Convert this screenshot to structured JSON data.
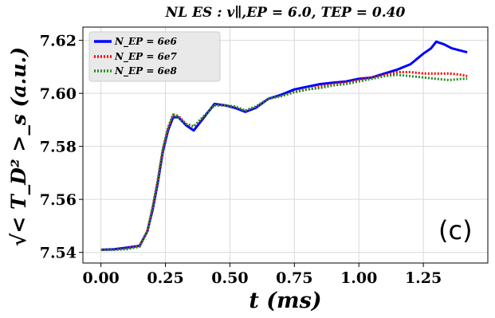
{
  "chart_data": {
    "type": "line",
    "title": "NL ES :  v∥,EP = 6.0,  TEP = 0.40",
    "xlabel": "t (ms)",
    "ylabel": "√< T_D² >_s (a.u.)",
    "panel_label": "(c)",
    "xlim": [
      -0.07,
      1.5
    ],
    "ylim": [
      7.536,
      7.625
    ],
    "xticks": [
      0.0,
      0.25,
      0.5,
      0.75,
      1.0,
      1.25
    ],
    "xtick_labels": [
      "0.00",
      "0.25",
      "0.50",
      "0.75",
      "1.00",
      "1.25"
    ],
    "yticks": [
      7.54,
      7.56,
      7.58,
      7.6,
      7.62
    ],
    "ytick_labels": [
      "7.54",
      "7.56",
      "7.58",
      "7.60",
      "7.62"
    ],
    "grid": true,
    "legend_position": "top-left",
    "series": [
      {
        "name": "N_EP = 6e6",
        "color": "#0000ff",
        "style": "solid",
        "x": [
          0.0,
          0.05,
          0.1,
          0.15,
          0.18,
          0.2,
          0.22,
          0.24,
          0.26,
          0.28,
          0.3,
          0.33,
          0.36,
          0.4,
          0.44,
          0.48,
          0.52,
          0.56,
          0.6,
          0.65,
          0.7,
          0.75,
          0.8,
          0.85,
          0.9,
          0.95,
          1.0,
          1.05,
          1.1,
          1.15,
          1.2,
          1.25,
          1.28,
          1.3,
          1.33,
          1.36,
          1.4,
          1.42
        ],
        "y": [
          7.541,
          7.5412,
          7.5418,
          7.5425,
          7.548,
          7.556,
          7.566,
          7.578,
          7.586,
          7.591,
          7.591,
          7.588,
          7.586,
          7.591,
          7.596,
          7.5955,
          7.5945,
          7.593,
          7.5945,
          7.598,
          7.5995,
          7.6015,
          7.6025,
          7.6035,
          7.604,
          7.6045,
          7.6055,
          7.606,
          7.6075,
          7.609,
          7.611,
          7.615,
          7.617,
          7.6195,
          7.6185,
          7.617,
          7.616,
          7.6155
        ]
      },
      {
        "name": "N_EP = 6e7",
        "color": "#ff0000",
        "style": "dotted",
        "x": [
          0.0,
          0.05,
          0.1,
          0.15,
          0.18,
          0.2,
          0.22,
          0.24,
          0.26,
          0.28,
          0.3,
          0.33,
          0.36,
          0.4,
          0.44,
          0.48,
          0.52,
          0.56,
          0.6,
          0.65,
          0.7,
          0.75,
          0.8,
          0.85,
          0.9,
          0.95,
          1.0,
          1.05,
          1.1,
          1.15,
          1.2,
          1.25,
          1.3,
          1.35,
          1.4,
          1.42
        ],
        "y": [
          7.541,
          7.541,
          7.5415,
          7.5425,
          7.548,
          7.557,
          7.567,
          7.579,
          7.587,
          7.592,
          7.5915,
          7.5885,
          7.5875,
          7.5915,
          7.5955,
          7.5955,
          7.595,
          7.5935,
          7.595,
          7.598,
          7.599,
          7.6005,
          7.6015,
          7.6025,
          7.6035,
          7.604,
          7.605,
          7.606,
          7.607,
          7.608,
          7.608,
          7.6075,
          7.6075,
          7.6075,
          7.607,
          7.6065
        ]
      },
      {
        "name": "N_EP = 6e8",
        "color": "#228b22",
        "style": "dotted",
        "x": [
          0.0,
          0.05,
          0.1,
          0.15,
          0.18,
          0.2,
          0.22,
          0.24,
          0.26,
          0.28,
          0.3,
          0.33,
          0.36,
          0.4,
          0.44,
          0.48,
          0.52,
          0.56,
          0.6,
          0.65,
          0.7,
          0.75,
          0.8,
          0.85,
          0.9,
          0.95,
          1.0,
          1.05,
          1.1,
          1.15,
          1.2,
          1.25,
          1.3,
          1.35,
          1.4,
          1.42
        ],
        "y": [
          7.541,
          7.541,
          7.5412,
          7.5422,
          7.548,
          7.557,
          7.567,
          7.579,
          7.587,
          7.592,
          7.591,
          7.5885,
          7.5875,
          7.5915,
          7.5955,
          7.5955,
          7.595,
          7.5935,
          7.595,
          7.598,
          7.599,
          7.6005,
          7.6015,
          7.602,
          7.603,
          7.6035,
          7.6045,
          7.6055,
          7.6065,
          7.607,
          7.6065,
          7.606,
          7.6055,
          7.605,
          7.6055,
          7.6055
        ]
      }
    ]
  }
}
